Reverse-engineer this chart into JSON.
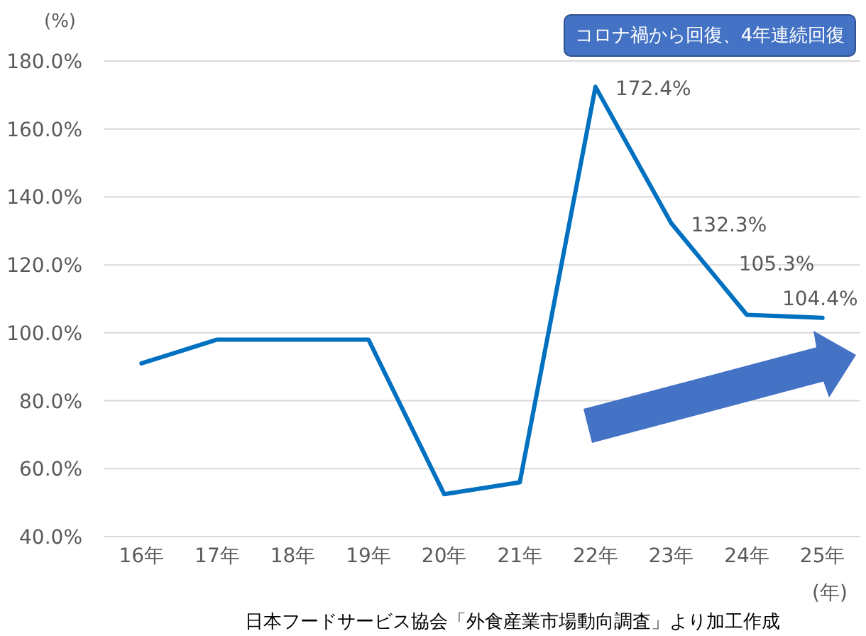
{
  "chart_data": {
    "type": "line",
    "categories": [
      "16年",
      "17年",
      "18年",
      "19年",
      "20年",
      "21年",
      "22年",
      "23年",
      "24年",
      "25年"
    ],
    "values": [
      91,
      98,
      98,
      98,
      52.5,
      56,
      172.4,
      132.3,
      105.3,
      104.4
    ],
    "color": "#0070c0",
    "value_labels": [
      null,
      null,
      null,
      null,
      null,
      null,
      "172.4%",
      "132.3%",
      "105.3%",
      "104.4%"
    ],
    "ylim": [
      40,
      180
    ],
    "yticks": [
      {
        "value": 40,
        "label": "40.0%"
      },
      {
        "value": 60,
        "label": "60.0%"
      },
      {
        "value": 80,
        "label": "80.0%"
      },
      {
        "value": 100,
        "label": "100.0%"
      },
      {
        "value": 120,
        "label": "120.0%"
      },
      {
        "value": 140,
        "label": "140.0%"
      },
      {
        "value": 160,
        "label": "160.0%"
      },
      {
        "value": 180,
        "label": "180.0%"
      }
    ],
    "grid": "y",
    "ylabel": "(%)",
    "xlabel": "(年)",
    "annotations": [
      "コロナ禍から回復、4年連続回復",
      "日本フードサービス協会「外食産業市場動向調査」より加工作成"
    ]
  }
}
